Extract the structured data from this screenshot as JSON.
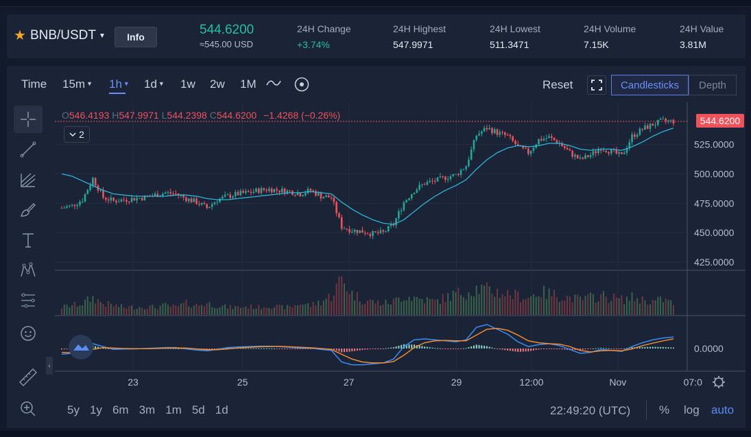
{
  "symbol": {
    "pair": "BNB/USDT",
    "info_label": "Info"
  },
  "price": {
    "last": "544.6200",
    "approx": "≈545.00 USD"
  },
  "stats": [
    {
      "label": "24H Change",
      "value": "+3.74%",
      "positive": true
    },
    {
      "label": "24H Highest",
      "value": "547.9971"
    },
    {
      "label": "24H Lowest",
      "value": "511.3471"
    },
    {
      "label": "24H Volume",
      "value": "7.15K"
    },
    {
      "label": "24H Value",
      "value": "3.81M"
    }
  ],
  "toolbar": {
    "time_label": "Time",
    "intervals": [
      {
        "label": "15m",
        "caret": true
      },
      {
        "label": "1h",
        "caret": true,
        "active": true
      },
      {
        "label": "1d",
        "caret": true
      },
      {
        "label": "1w"
      },
      {
        "label": "2w"
      },
      {
        "label": "1M"
      }
    ],
    "reset_label": "Reset",
    "view_candles": "Candlesticks",
    "view_depth": "Depth"
  },
  "legend": {
    "o_key": "O",
    "o_val": "546.4193",
    "h_key": "H",
    "h_val": "547.9971",
    "l_key": "L",
    "l_val": "544.2398",
    "c_key": "C",
    "c_val": "544.6200",
    "change": "−1.4268 (−0.26%)",
    "indicator_count": "2"
  },
  "chart_data": {
    "type": "candlestick",
    "price_axis_ticks": [
      "525.0000",
      "500.0000",
      "475.0000",
      "450.0000",
      "425.0000"
    ],
    "price_ylim": [
      418,
      558
    ],
    "last_price_label": "544.6200",
    "macd_axis_ticks": [
      "0.0000"
    ],
    "time_axis_ticks": [
      "23",
      "25",
      "27",
      "29",
      "12:00",
      "Nov",
      "07:0"
    ],
    "close_series": [
      471,
      473,
      478,
      496,
      480,
      477,
      478,
      479,
      480,
      482,
      484,
      483,
      479,
      476,
      471,
      478,
      481,
      483,
      484,
      486,
      487,
      486,
      485,
      483,
      486,
      481,
      480,
      455,
      452,
      451,
      449,
      450,
      457,
      476,
      486,
      492,
      494,
      497,
      499,
      507,
      533,
      539,
      535,
      532,
      523,
      518,
      529,
      531,
      526,
      518,
      512,
      516,
      522,
      519,
      515,
      532,
      538,
      542,
      545,
      544.62
    ],
    "ma_series": [
      500,
      498,
      494,
      490,
      486,
      483,
      482,
      481,
      481,
      481,
      481,
      482,
      482,
      481,
      479,
      478,
      478,
      479,
      480,
      481,
      482,
      483,
      484,
      484,
      485,
      484,
      483,
      476,
      470,
      465,
      461,
      458,
      457,
      461,
      468,
      475,
      481,
      486,
      490,
      495,
      504,
      512,
      518,
      522,
      524,
      523,
      524,
      526,
      526,
      524,
      521,
      520,
      521,
      521,
      520,
      523,
      527,
      532,
      536,
      539
    ],
    "volume": [
      0.2,
      0.25,
      0.3,
      0.45,
      0.3,
      0.25,
      0.2,
      0.2,
      0.22,
      0.2,
      0.25,
      0.2,
      0.3,
      0.25,
      0.3,
      0.25,
      0.2,
      0.2,
      0.22,
      0.2,
      0.25,
      0.2,
      0.2,
      0.3,
      0.25,
      0.35,
      0.5,
      0.95,
      0.55,
      0.4,
      0.35,
      0.3,
      0.35,
      0.5,
      0.45,
      0.4,
      0.35,
      0.45,
      0.55,
      0.6,
      0.7,
      0.65,
      0.6,
      0.55,
      0.5,
      0.45,
      0.6,
      0.55,
      0.5,
      0.45,
      0.4,
      0.45,
      0.5,
      0.45,
      0.4,
      0.45,
      0.4,
      0.35,
      0.4,
      0.3
    ],
    "macd": [
      -0.3,
      -0.25,
      -0.1,
      0.25,
      0.1,
      -0.05,
      -0.03,
      -0.02,
      0,
      0.02,
      0.05,
      0.05,
      -0.02,
      -0.08,
      -0.12,
      -0.05,
      0.05,
      0.08,
      0.1,
      0.12,
      0.12,
      0.1,
      0.06,
      0.02,
      0.02,
      -0.05,
      -0.1,
      -0.7,
      -0.85,
      -0.85,
      -0.8,
      -0.75,
      -0.55,
      0.1,
      0.45,
      0.5,
      0.45,
      0.4,
      0.35,
      0.45,
      1.1,
      1.25,
      1.0,
      0.75,
      0.35,
      0.1,
      0.2,
      0.25,
      0.15,
      -0.05,
      -0.25,
      -0.2,
      -0.05,
      -0.1,
      -0.15,
      0.1,
      0.3,
      0.45,
      0.55,
      0.6
    ],
    "signal": [
      -0.2,
      -0.22,
      -0.2,
      -0.05,
      0.05,
      0.02,
      0.0,
      -0.01,
      -0.01,
      0.0,
      0.02,
      0.03,
      0.02,
      -0.02,
      -0.06,
      -0.06,
      -0.02,
      0.03,
      0.06,
      0.09,
      0.1,
      0.11,
      0.09,
      0.06,
      0.04,
      0.0,
      -0.05,
      -0.3,
      -0.55,
      -0.7,
      -0.75,
      -0.75,
      -0.68,
      -0.35,
      0.05,
      0.3,
      0.4,
      0.42,
      0.4,
      0.4,
      0.7,
      1.0,
      1.05,
      0.95,
      0.7,
      0.4,
      0.3,
      0.25,
      0.22,
      0.1,
      -0.1,
      -0.18,
      -0.12,
      -0.1,
      -0.12,
      -0.02,
      0.15,
      0.28,
      0.4,
      0.5
    ]
  },
  "bottom": {
    "ranges": [
      "5y",
      "1y",
      "6m",
      "3m",
      "1m",
      "5d",
      "1d"
    ],
    "clock": "22:49:20 (UTC)",
    "pct": "%",
    "log": "log",
    "auto": "auto"
  },
  "colors": {
    "up": "#26a69a",
    "down": "#f0525b",
    "accent": "#5b8ef5",
    "ma": "#2fb5d8",
    "signal": "#f08c35"
  }
}
